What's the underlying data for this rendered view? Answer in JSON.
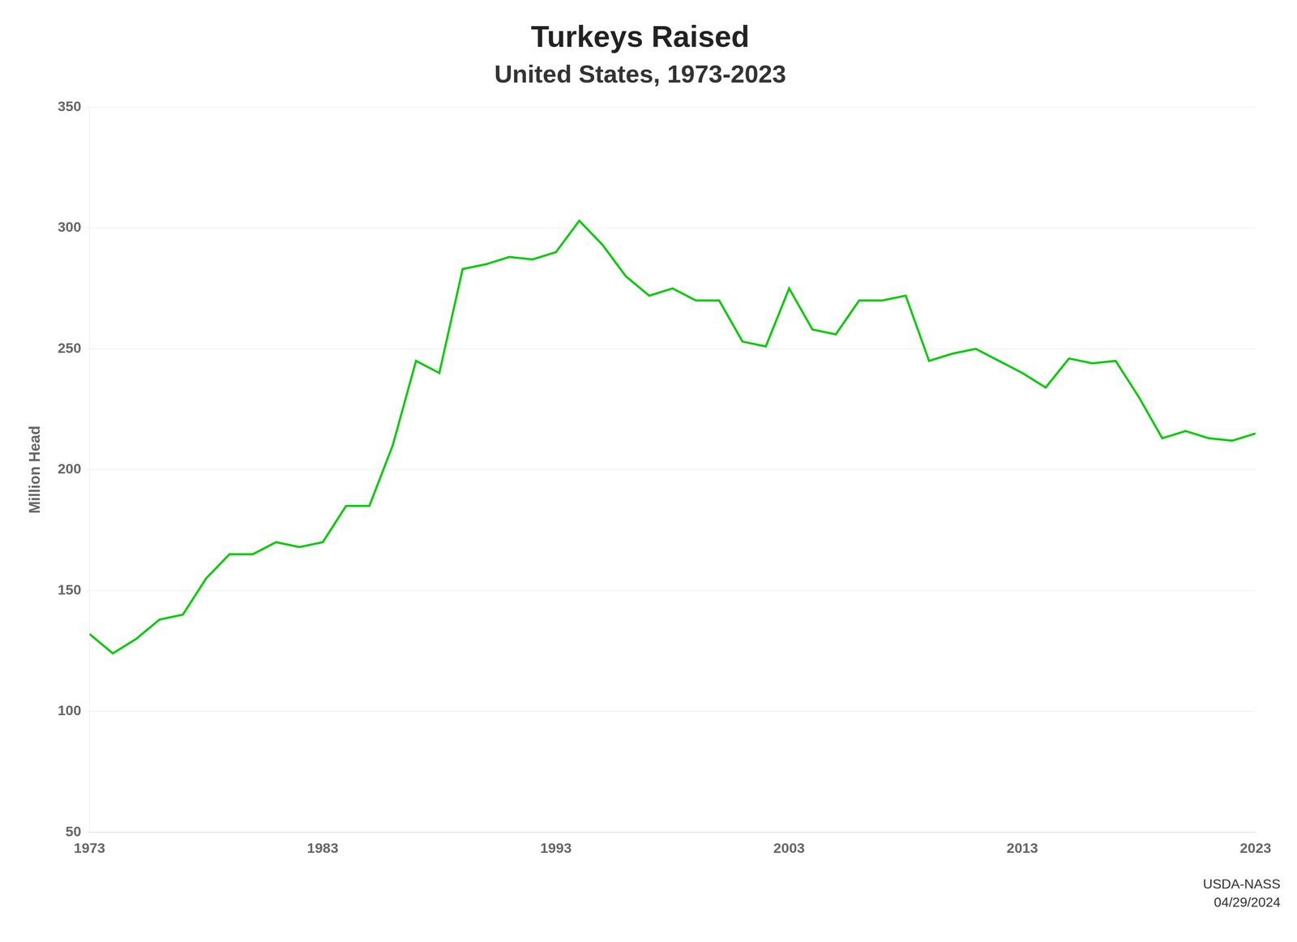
{
  "chart_data": {
    "type": "line",
    "title": "Turkeys Raised",
    "subtitle": "United States, 1973-2023",
    "ylabel": "Million Head",
    "annotations": [
      "USDA-NASS",
      "04/29/2024"
    ],
    "x": [
      1973,
      1974,
      1975,
      1976,
      1977,
      1978,
      1979,
      1980,
      1981,
      1982,
      1983,
      1984,
      1985,
      1986,
      1987,
      1988,
      1989,
      1990,
      1991,
      1992,
      1993,
      1994,
      1995,
      1996,
      1997,
      1998,
      1999,
      2000,
      2001,
      2002,
      2003,
      2004,
      2005,
      2006,
      2007,
      2008,
      2009,
      2010,
      2011,
      2012,
      2013,
      2014,
      2015,
      2016,
      2017,
      2018,
      2019,
      2020,
      2021,
      2022,
      2023
    ],
    "values": [
      132,
      124,
      130,
      138,
      140,
      155,
      165,
      165,
      170,
      168,
      170,
      185,
      185,
      210,
      245,
      240,
      283,
      285,
      288,
      287,
      290,
      303,
      293,
      280,
      272,
      275,
      270,
      270,
      253,
      251,
      275,
      258,
      256,
      270,
      270,
      272,
      245,
      248,
      250,
      245,
      240,
      234,
      246,
      244,
      245,
      230,
      213,
      216,
      213,
      212,
      215
    ],
    "color": "#00cc00",
    "xlim": [
      1973,
      2023
    ],
    "xticks": [
      1973,
      1983,
      1993,
      2003,
      2013,
      2023
    ],
    "ylim": [
      50,
      350
    ],
    "yticks": [
      50,
      100,
      150,
      200,
      250,
      300,
      350
    ],
    "grid": "y"
  }
}
